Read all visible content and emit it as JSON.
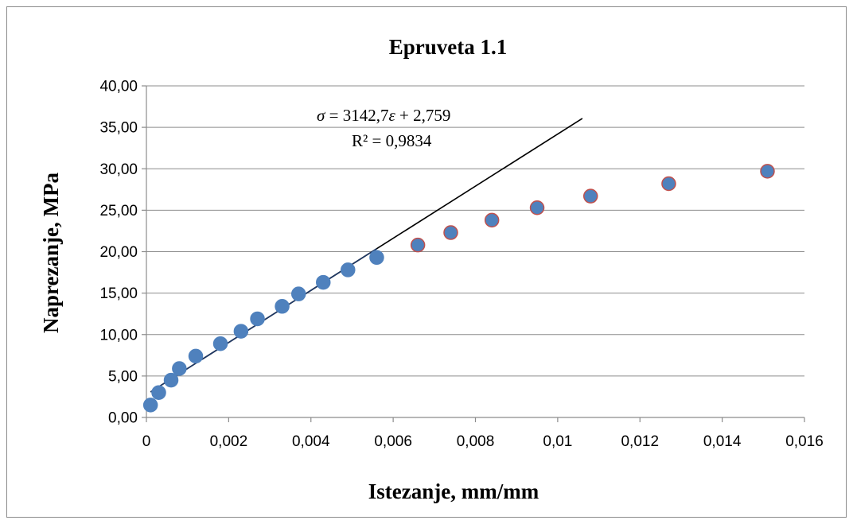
{
  "chart_data": {
    "type": "scatter",
    "title": "Epruveta 1.1",
    "xlabel": "Istezanje, mm/mm",
    "ylabel": "Naprezanje, MPa",
    "xlim": [
      0,
      0.016
    ],
    "ylim": [
      0,
      40
    ],
    "x_ticks": [
      "0",
      "0,002",
      "0,004",
      "0,006",
      "0,008",
      "0,01",
      "0,012",
      "0,014",
      "0,016"
    ],
    "y_ticks": [
      "0,00",
      "5,00",
      "10,00",
      "15,00",
      "20,00",
      "25,00",
      "30,00",
      "35,00",
      "40,00"
    ],
    "grid": true,
    "series": [
      {
        "color": "#4f81bd",
        "outline": "#4f81bd",
        "points": [
          [
            0.0001,
            1.5
          ],
          [
            0.0003,
            3.0
          ],
          [
            0.0006,
            4.5
          ],
          [
            0.0008,
            5.9
          ],
          [
            0.0012,
            7.4
          ],
          [
            0.0018,
            8.9
          ],
          [
            0.0023,
            10.4
          ],
          [
            0.0027,
            11.9
          ],
          [
            0.0033,
            13.4
          ],
          [
            0.0037,
            14.9
          ],
          [
            0.0043,
            16.3
          ],
          [
            0.0049,
            17.8
          ],
          [
            0.0056,
            19.3
          ]
        ]
      },
      {
        "color": "#4f81bd",
        "outline": "#c0504d",
        "points": [
          [
            0.0066,
            20.8
          ],
          [
            0.0074,
            22.3
          ],
          [
            0.0084,
            23.8
          ],
          [
            0.0095,
            25.3
          ],
          [
            0.0108,
            26.7
          ],
          [
            0.0127,
            28.2
          ],
          [
            0.0151,
            29.7
          ]
        ]
      }
    ],
    "trendlines": [
      {
        "color": "#000000",
        "x_range": [
          0.0001,
          0.0106
        ],
        "slope": 3142.7,
        "intercept": 2.759
      },
      {
        "color": "#1f3864",
        "x_range": [
          0.0001,
          0.0056
        ],
        "slope": 3142.7,
        "intercept": 2.759
      }
    ],
    "annotation": {
      "equation_sigma": "σ",
      "equation_mid": " = 3142,7",
      "equation_eps": "ε",
      "equation_end": " + 2,759",
      "r_squared": "R² = 0,9834"
    }
  }
}
